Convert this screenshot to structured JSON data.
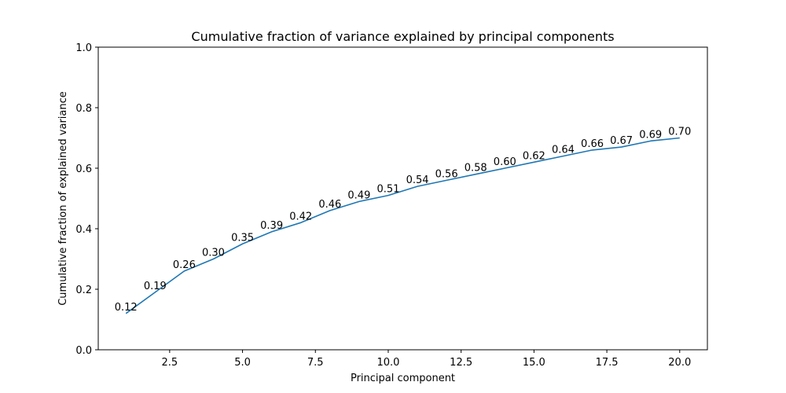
{
  "chart_data": {
    "type": "line",
    "title": "Cumulative fraction of variance explained by principal components",
    "xlabel": "Principal component",
    "ylabel": "Cumulative fraction of explained variance",
    "xlim": [
      0.05,
      20.95
    ],
    "ylim": [
      0.0,
      1.0
    ],
    "x_ticks": [
      2.5,
      5.0,
      7.5,
      10.0,
      12.5,
      15.0,
      17.5,
      20.0
    ],
    "x_tick_labels": [
      "2.5",
      "5.0",
      "7.5",
      "10.0",
      "12.5",
      "15.0",
      "17.5",
      "20.0"
    ],
    "y_ticks": [
      0.0,
      0.2,
      0.4,
      0.6,
      0.8,
      1.0
    ],
    "y_tick_labels": [
      "0.0",
      "0.2",
      "0.4",
      "0.6",
      "0.8",
      "1.0"
    ],
    "grid": false,
    "line_color": "#1f77b4",
    "x": [
      1,
      2,
      3,
      4,
      5,
      6,
      7,
      8,
      9,
      10,
      11,
      12,
      13,
      14,
      15,
      16,
      17,
      18,
      19,
      20
    ],
    "y": [
      0.12,
      0.19,
      0.26,
      0.3,
      0.35,
      0.39,
      0.42,
      0.46,
      0.49,
      0.51,
      0.54,
      0.56,
      0.58,
      0.6,
      0.62,
      0.64,
      0.66,
      0.67,
      0.69,
      0.7
    ],
    "point_labels": [
      "0.12",
      "0.19",
      "0.26",
      "0.30",
      "0.35",
      "0.39",
      "0.42",
      "0.46",
      "0.49",
      "0.51",
      "0.54",
      "0.56",
      "0.58",
      "0.60",
      "0.62",
      "0.64",
      "0.66",
      "0.67",
      "0.69",
      "0.70"
    ]
  }
}
